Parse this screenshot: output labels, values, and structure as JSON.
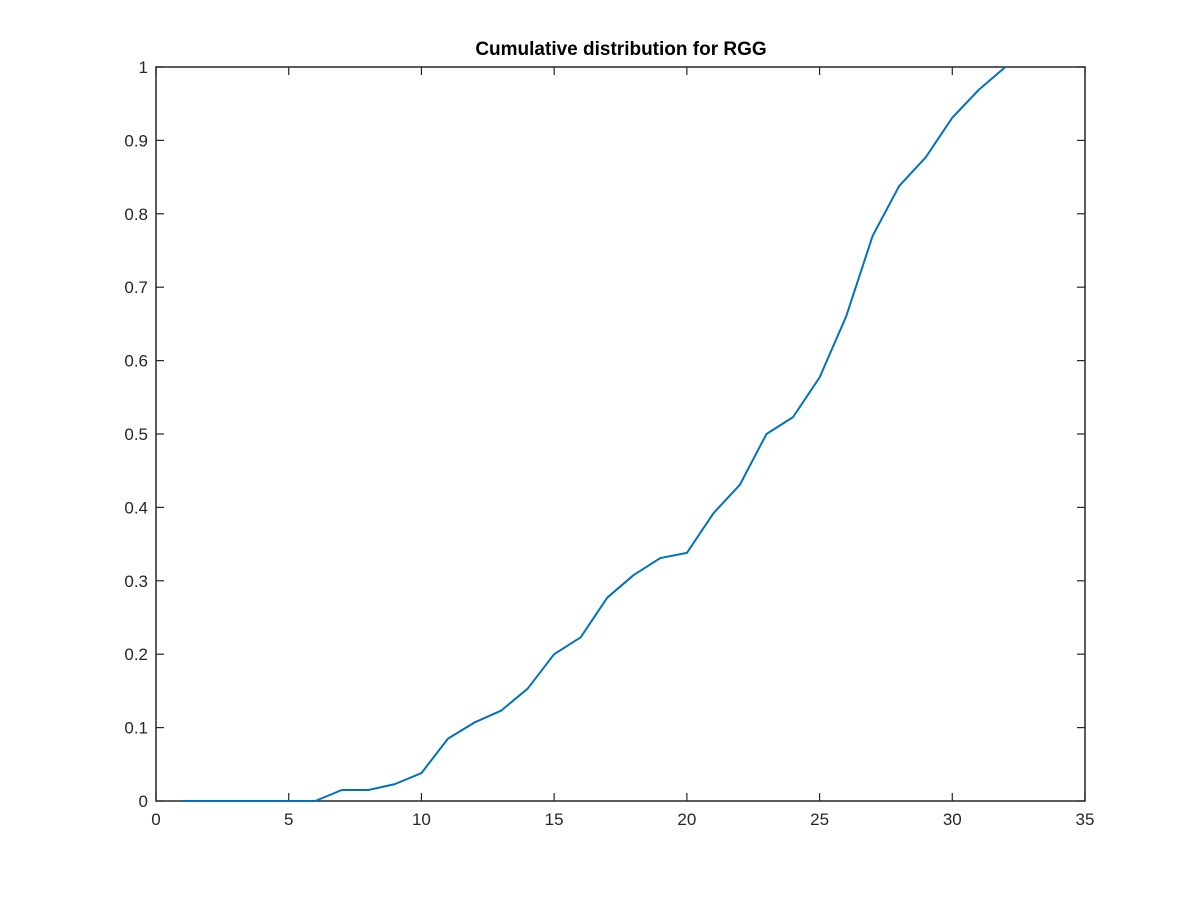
{
  "chart_data": {
    "type": "line",
    "title": "Cumulative distribution for RGG",
    "xlabel": "",
    "ylabel": "",
    "xlim": [
      0,
      35
    ],
    "ylim": [
      0,
      1
    ],
    "xticks": [
      0,
      5,
      10,
      15,
      20,
      25,
      30,
      35
    ],
    "yticks": [
      0,
      0.1,
      0.2,
      0.3,
      0.4,
      0.5,
      0.6,
      0.7,
      0.8,
      0.9,
      1
    ],
    "xtick_labels": [
      "0",
      "5",
      "10",
      "15",
      "20",
      "25",
      "30",
      "35"
    ],
    "ytick_labels": [
      "0",
      "0.1",
      "0.2",
      "0.3",
      "0.4",
      "0.5",
      "0.6",
      "0.7",
      "0.8",
      "0.9",
      "1"
    ],
    "grid": false,
    "series": [
      {
        "color": "#0072BD",
        "x": [
          1,
          2,
          3,
          4,
          5,
          6,
          7,
          8,
          9,
          10,
          11,
          12,
          13,
          14,
          15,
          16,
          17,
          18,
          19,
          20,
          21,
          22,
          23,
          24,
          25,
          26,
          27,
          28,
          29,
          30,
          31,
          32
        ],
        "y": [
          0,
          0,
          0,
          0,
          0,
          0,
          0.015,
          0.015,
          0.023,
          0.038,
          0.085,
          0.107,
          0.123,
          0.153,
          0.2,
          0.223,
          0.277,
          0.308,
          0.331,
          0.338,
          0.392,
          0.431,
          0.5,
          0.523,
          0.577,
          0.66,
          0.77,
          0.838,
          0.877,
          0.931,
          0.969,
          1.0
        ]
      }
    ]
  }
}
